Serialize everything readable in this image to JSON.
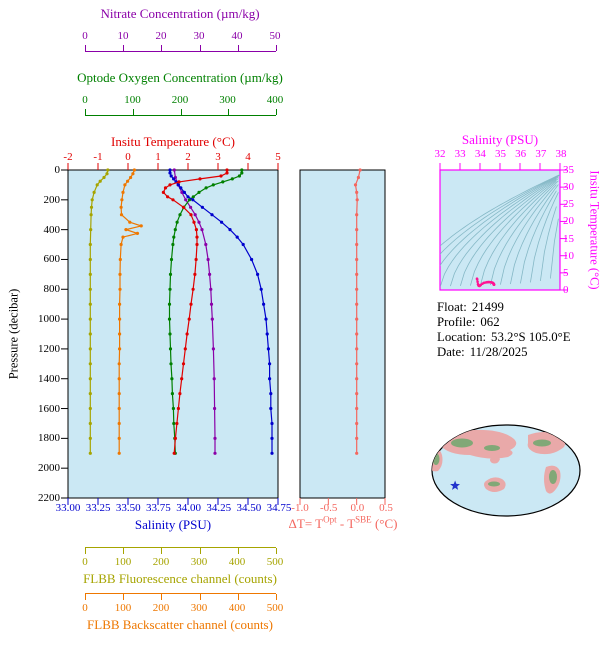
{
  "colors": {
    "panel_bg": "#CBE8F4",
    "frame": "#000000",
    "nitrate": "#8A00A8",
    "oxygen": "#008000",
    "temperature": "#E00000",
    "salinity": "#0000CD",
    "pressure": "#000000",
    "fluorescence": "#A6A400",
    "backscatter": "#EE7700",
    "delta_t": "#F4665E",
    "ts_frame": "#FF00FF",
    "ts_data": "#FF1493",
    "contour": "#85B8C6",
    "map_ocean": "#CBE8F4",
    "map_land": "#E9A9A9",
    "map_green": "#6FA86F",
    "star": "#2233CC"
  },
  "info": {
    "float_label": "Float:",
    "float_value": "21499",
    "profile_label": "Profile:",
    "profile_value": "062",
    "location_label": "Location:",
    "location_value": "53.2°S  105.0°E",
    "date_label": "Date:",
    "date_value": "11/28/2025"
  },
  "map": {
    "star_fx": 0.165,
    "star_fy": 0.66
  },
  "chart_data": [
    {
      "id": "profile-plot",
      "type": "line",
      "pressure_axis": {
        "label": "Pressure (decibar)",
        "min": 0,
        "max": 2200,
        "ticks": [
          "0",
          "200",
          "400",
          "600",
          "800",
          "1000",
          "1200",
          "1400",
          "1600",
          "1800",
          "2000",
          "2200"
        ]
      },
      "series": [
        {
          "name": "nitrate",
          "title": "Nitrate Concentration (µm/kg)",
          "color": "#8A00A8",
          "min": 0,
          "max": 50,
          "span": "inner",
          "ticks": [
            "0",
            "10",
            "20",
            "30",
            "40",
            "50"
          ],
          "points": [
            [
              0,
              23.5
            ],
            [
              50,
              23.8
            ],
            [
              100,
              24.5
            ],
            [
              150,
              25.5
            ],
            [
              200,
              26.5
            ],
            [
              250,
              27.8
            ],
            [
              300,
              29.0
            ],
            [
              350,
              30.0
            ],
            [
              400,
              30.8
            ],
            [
              500,
              31.8
            ],
            [
              600,
              32.4
            ],
            [
              700,
              32.8
            ],
            [
              800,
              33.1
            ],
            [
              900,
              33.3
            ],
            [
              1000,
              33.5
            ],
            [
              1200,
              33.8
            ],
            [
              1400,
              34.0
            ],
            [
              1600,
              34.1
            ],
            [
              1800,
              34.2
            ],
            [
              1900,
              34.2
            ]
          ]
        },
        {
          "name": "oxygen",
          "title": "Optode Oxygen Concentration (µm/kg)",
          "color": "#008000",
          "min": 0,
          "max": 400,
          "span": "inner",
          "ticks": [
            "0",
            "100",
            "200",
            "300",
            "400"
          ],
          "points": [
            [
              0,
              330
            ],
            [
              20,
              330
            ],
            [
              40,
              325
            ],
            [
              60,
              310
            ],
            [
              80,
              290
            ],
            [
              100,
              270
            ],
            [
              120,
              255
            ],
            [
              150,
              240
            ],
            [
              180,
              228
            ],
            [
              200,
              220
            ],
            [
              250,
              208
            ],
            [
              300,
              200
            ],
            [
              350,
              194
            ],
            [
              400,
              190
            ],
            [
              450,
              187
            ],
            [
              500,
              185
            ],
            [
              600,
              182
            ],
            [
              700,
              180
            ],
            [
              800,
              179
            ],
            [
              900,
              178
            ],
            [
              1000,
              178
            ],
            [
              1100,
              179
            ],
            [
              1200,
              180
            ],
            [
              1300,
              181
            ],
            [
              1400,
              183
            ],
            [
              1500,
              184
            ],
            [
              1600,
              186
            ],
            [
              1700,
              187
            ],
            [
              1800,
              189
            ],
            [
              1900,
              190
            ]
          ]
        },
        {
          "name": "temperature",
          "title": "Insitu Temperature (°C)",
          "color": "#E00000",
          "min": -2,
          "max": 5,
          "span": "full",
          "ticks": [
            "-2",
            "-1",
            "0",
            "1",
            "2",
            "3",
            "4",
            "5"
          ],
          "points": [
            [
              0,
              3.3
            ],
            [
              20,
              3.3
            ],
            [
              40,
              3.1
            ],
            [
              60,
              2.4
            ],
            [
              80,
              1.7
            ],
            [
              100,
              1.4
            ],
            [
              120,
              1.25
            ],
            [
              150,
              1.18
            ],
            [
              180,
              1.32
            ],
            [
              200,
              1.5
            ],
            [
              250,
              1.85
            ],
            [
              300,
              2.1
            ],
            [
              350,
              2.2
            ],
            [
              400,
              2.28
            ],
            [
              450,
              2.3
            ],
            [
              500,
              2.3
            ],
            [
              600,
              2.27
            ],
            [
              700,
              2.23
            ],
            [
              800,
              2.17
            ],
            [
              900,
              2.1
            ],
            [
              1000,
              2.04
            ],
            [
              1100,
              1.97
            ],
            [
              1200,
              1.91
            ],
            [
              1300,
              1.85
            ],
            [
              1400,
              1.79
            ],
            [
              1500,
              1.73
            ],
            [
              1600,
              1.68
            ],
            [
              1700,
              1.63
            ],
            [
              1800,
              1.58
            ],
            [
              1900,
              1.54
            ]
          ]
        },
        {
          "name": "salinity",
          "title": "Salinity (PSU)",
          "color": "#0000CD",
          "min": 33,
          "max": 34.75,
          "span": "full",
          "ticks": [
            "33.00",
            "33.25",
            "33.50",
            "33.75",
            "34.00",
            "34.25",
            "34.50",
            "34.75"
          ],
          "points": [
            [
              0,
              33.85
            ],
            [
              20,
              33.85
            ],
            [
              40,
              33.86
            ],
            [
              60,
              33.88
            ],
            [
              80,
              33.9
            ],
            [
              100,
              33.92
            ],
            [
              120,
              33.94
            ],
            [
              150,
              33.97
            ],
            [
              180,
              34.0
            ],
            [
              200,
              34.04
            ],
            [
              250,
              34.12
            ],
            [
              300,
              34.2
            ],
            [
              350,
              34.28
            ],
            [
              400,
              34.35
            ],
            [
              450,
              34.41
            ],
            [
              500,
              34.46
            ],
            [
              600,
              34.53
            ],
            [
              700,
              34.58
            ],
            [
              800,
              34.61
            ],
            [
              900,
              34.63
            ],
            [
              1000,
              34.65
            ],
            [
              1100,
              34.66
            ],
            [
              1200,
              34.67
            ],
            [
              1300,
              34.68
            ],
            [
              1400,
              34.68
            ],
            [
              1500,
              34.69
            ],
            [
              1600,
              34.69
            ],
            [
              1700,
              34.7
            ],
            [
              1800,
              34.7
            ],
            [
              1900,
              34.7
            ]
          ]
        },
        {
          "name": "fluorescence",
          "title": "FLBB Fluorescence channel (counts)",
          "color": "#A6A400",
          "min": 0,
          "max": 500,
          "span": "inner",
          "ticks": [
            "0",
            "100",
            "200",
            "300",
            "400",
            "500"
          ],
          "points": [
            [
              0,
              60
            ],
            [
              25,
              58
            ],
            [
              50,
              50
            ],
            [
              75,
              40
            ],
            [
              100,
              32
            ],
            [
              150,
              24
            ],
            [
              200,
              19
            ],
            [
              250,
              17
            ],
            [
              300,
              16
            ],
            [
              400,
              15
            ],
            [
              500,
              14
            ],
            [
              600,
              14
            ],
            [
              700,
              14
            ],
            [
              800,
              14
            ],
            [
              900,
              14
            ],
            [
              1000,
              14
            ],
            [
              1100,
              14
            ],
            [
              1200,
              14
            ],
            [
              1300,
              14
            ],
            [
              1400,
              14
            ],
            [
              1500,
              14
            ],
            [
              1600,
              14
            ],
            [
              1700,
              14
            ],
            [
              1800,
              14
            ],
            [
              1900,
              14
            ]
          ]
        },
        {
          "name": "backscatter",
          "title": "FLBB Backscatter channel (counts)",
          "color": "#EE7700",
          "min": 0,
          "max": 500,
          "span": "inner",
          "ticks": [
            "0",
            "100",
            "200",
            "300",
            "400",
            "500"
          ],
          "points": [
            [
              0,
              130
            ],
            [
              25,
              126
            ],
            [
              50,
              120
            ],
            [
              75,
              112
            ],
            [
              100,
              105
            ],
            [
              150,
              100
            ],
            [
              200,
              97
            ],
            [
              250,
              95
            ],
            [
              300,
              96
            ],
            [
              350,
              118
            ],
            [
              375,
              148
            ],
            [
              400,
              108
            ],
            [
              425,
              138
            ],
            [
              450,
              100
            ],
            [
              500,
              95
            ],
            [
              600,
              93
            ],
            [
              700,
              92
            ],
            [
              800,
              92
            ],
            [
              900,
              91
            ],
            [
              1000,
              91
            ],
            [
              1100,
              91
            ],
            [
              1200,
              91
            ],
            [
              1300,
              90
            ],
            [
              1400,
              90
            ],
            [
              1500,
              90
            ],
            [
              1600,
              90
            ],
            [
              1700,
              90
            ],
            [
              1800,
              90
            ],
            [
              1900,
              90
            ]
          ]
        }
      ]
    },
    {
      "id": "delta-t-plot",
      "type": "line",
      "color": "#F4665E",
      "x_axis": {
        "label_parts": [
          "ΔT= T",
          "Opt",
          " - T",
          "SBE",
          " (°C)"
        ],
        "min": -1.0,
        "max": 0.5,
        "ticks": [
          "-1.0",
          "-0.5",
          "0.0",
          "0.5"
        ]
      },
      "pressure_range": [
        0,
        2200
      ],
      "points": [
        [
          0,
          0.06
        ],
        [
          50,
          0.03
        ],
        [
          100,
          -0.02
        ],
        [
          150,
          0.0
        ],
        [
          200,
          0.01
        ],
        [
          300,
          0.0
        ],
        [
          400,
          0.0
        ],
        [
          500,
          0.0
        ],
        [
          600,
          0.0
        ],
        [
          700,
          0.0
        ],
        [
          800,
          0.0
        ],
        [
          900,
          0.0
        ],
        [
          1000,
          0.0
        ],
        [
          1100,
          0.0
        ],
        [
          1200,
          0.0
        ],
        [
          1300,
          0.0
        ],
        [
          1400,
          0.0
        ],
        [
          1500,
          0.0
        ],
        [
          1600,
          0.0
        ],
        [
          1700,
          0.0
        ],
        [
          1800,
          0.0
        ],
        [
          1900,
          0.0
        ]
      ]
    },
    {
      "id": "ts-diagram",
      "type": "scatter",
      "color": "#FF1493",
      "contour_lines": 15,
      "x_axis": {
        "label": "Salinity (PSU)",
        "min": 32,
        "max": 38,
        "ticks": [
          "32",
          "33",
          "34",
          "35",
          "36",
          "37",
          "38"
        ]
      },
      "y_axis": {
        "label": "Insitu Temperature (°C)",
        "min": 0,
        "max": 35,
        "ticks": [
          "0",
          "5",
          "10",
          "15",
          "20",
          "25",
          "30",
          "35"
        ]
      },
      "points": [
        [
          33.85,
          3.3
        ],
        [
          33.86,
          3.1
        ],
        [
          33.88,
          2.4
        ],
        [
          33.9,
          1.7
        ],
        [
          33.92,
          1.4
        ],
        [
          33.94,
          1.25
        ],
        [
          33.97,
          1.18
        ],
        [
          34.0,
          1.32
        ],
        [
          34.04,
          1.5
        ],
        [
          34.12,
          1.85
        ],
        [
          34.2,
          2.1
        ],
        [
          34.28,
          2.2
        ],
        [
          34.35,
          2.28
        ],
        [
          34.41,
          2.3
        ],
        [
          34.46,
          2.3
        ],
        [
          34.53,
          2.27
        ],
        [
          34.58,
          2.23
        ],
        [
          34.61,
          2.17
        ],
        [
          34.63,
          2.1
        ],
        [
          34.65,
          2.04
        ],
        [
          34.66,
          1.97
        ],
        [
          34.67,
          1.91
        ],
        [
          34.68,
          1.85
        ],
        [
          34.68,
          1.79
        ],
        [
          34.69,
          1.73
        ],
        [
          34.69,
          1.68
        ],
        [
          34.7,
          1.63
        ],
        [
          34.7,
          1.58
        ],
        [
          34.7,
          1.54
        ]
      ]
    }
  ]
}
